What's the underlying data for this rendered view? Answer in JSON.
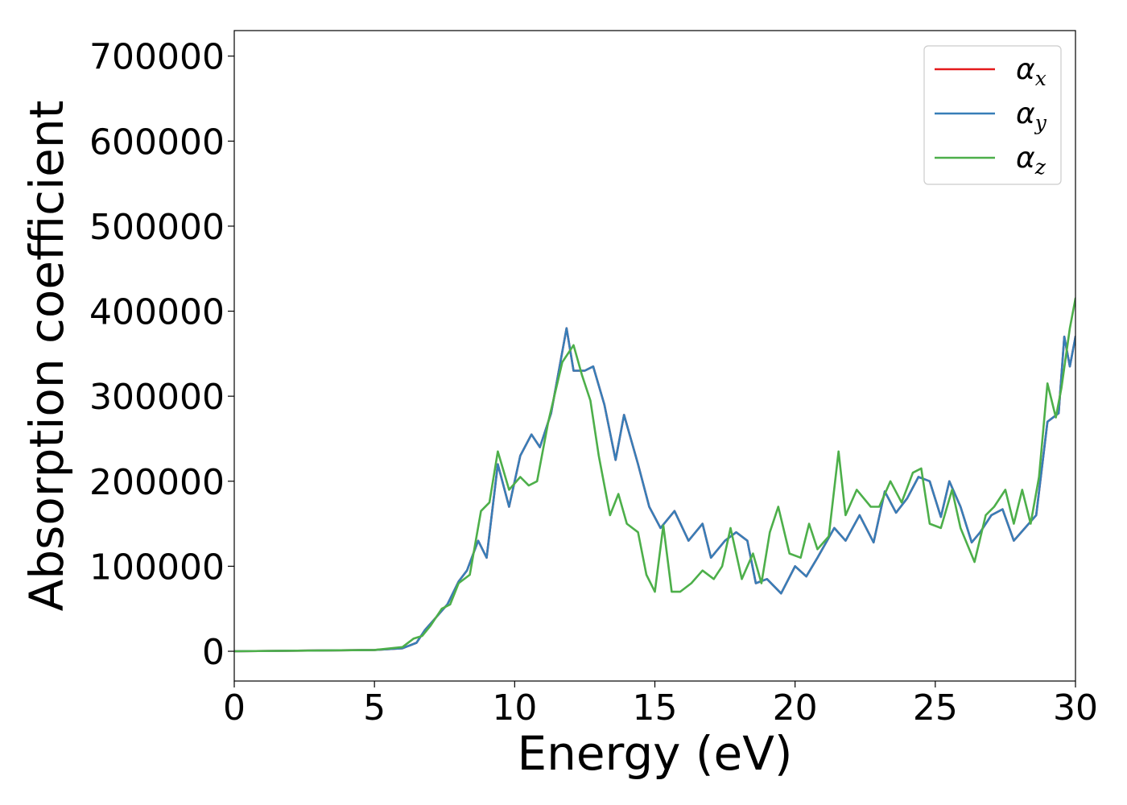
{
  "chart_data": {
    "type": "line",
    "xlabel": "Energy (eV)",
    "ylabel": "Absorption coefficient",
    "xlim": [
      0,
      30
    ],
    "ylim": [
      -35000,
      730000
    ],
    "xticks": [
      0,
      5,
      10,
      15,
      20,
      25,
      30
    ],
    "xtick_labels": [
      "0",
      "5",
      "10",
      "15",
      "20",
      "25",
      "30"
    ],
    "yticks": [
      0,
      100000,
      200000,
      300000,
      400000,
      500000,
      600000,
      700000
    ],
    "ytick_labels": [
      "0",
      "100000",
      "200000",
      "300000",
      "400000",
      "500000",
      "600000",
      "700000"
    ],
    "grid": false,
    "legend_position": "top-right",
    "series": [
      {
        "name": "α",
        "subscript": "x",
        "color": "#e41a1c",
        "x": [
          0,
          5,
          6.0,
          6.5,
          6.8,
          7.2,
          7.6,
          8.0,
          8.3,
          8.7,
          9.0,
          9.4,
          9.8,
          10.2,
          10.6,
          10.9,
          11.3,
          11.85,
          12.1,
          12.5,
          12.8,
          13.2,
          13.6,
          13.9,
          14.4,
          14.8,
          15.2,
          15.7,
          16.2,
          16.7,
          17.0,
          17.5,
          17.9,
          18.3,
          18.6,
          19.0,
          19.5,
          20.0,
          20.4,
          20.8,
          21.4,
          21.8,
          22.3,
          22.8,
          23.2,
          23.6,
          24.0,
          24.4,
          24.8,
          25.2,
          25.5,
          25.9,
          26.3,
          26.6,
          27.0,
          27.4,
          27.8,
          28.2,
          28.6,
          29.0,
          29.4,
          29.6,
          29.8,
          30.0
        ],
        "y": [
          0,
          1500,
          3500,
          10000,
          25000,
          40000,
          55000,
          82000,
          95000,
          130000,
          110000,
          220000,
          170000,
          230000,
          255000,
          240000,
          280000,
          380000,
          330000,
          330000,
          335000,
          290000,
          225000,
          278000,
          220000,
          170000,
          145000,
          165000,
          130000,
          150000,
          110000,
          130000,
          140000,
          130000,
          80000,
          85000,
          68000,
          100000,
          88000,
          110000,
          145000,
          130000,
          160000,
          128000,
          188000,
          163000,
          180000,
          205000,
          200000,
          158000,
          200000,
          170000,
          128000,
          140000,
          160000,
          167000,
          130000,
          145000,
          160000,
          270000,
          280000,
          370000,
          335000,
          370000
        ]
      },
      {
        "name": "α",
        "subscript": "y",
        "color": "#377eb8",
        "x": [
          0,
          5,
          6.0,
          6.5,
          6.8,
          7.2,
          7.6,
          8.0,
          8.3,
          8.7,
          9.0,
          9.4,
          9.8,
          10.2,
          10.6,
          10.9,
          11.3,
          11.85,
          12.1,
          12.5,
          12.8,
          13.2,
          13.6,
          13.9,
          14.4,
          14.8,
          15.2,
          15.7,
          16.2,
          16.7,
          17.0,
          17.5,
          17.9,
          18.3,
          18.6,
          19.0,
          19.5,
          20.0,
          20.4,
          20.8,
          21.4,
          21.8,
          22.3,
          22.8,
          23.2,
          23.6,
          24.0,
          24.4,
          24.8,
          25.2,
          25.5,
          25.9,
          26.3,
          26.6,
          27.0,
          27.4,
          27.8,
          28.2,
          28.6,
          29.0,
          29.4,
          29.6,
          29.8,
          30.0
        ],
        "y": [
          0,
          1500,
          3500,
          10000,
          25000,
          40000,
          55000,
          82000,
          95000,
          130000,
          110000,
          220000,
          170000,
          230000,
          255000,
          240000,
          280000,
          380000,
          330000,
          330000,
          335000,
          290000,
          225000,
          278000,
          220000,
          170000,
          145000,
          165000,
          130000,
          150000,
          110000,
          130000,
          140000,
          130000,
          80000,
          85000,
          68000,
          100000,
          88000,
          110000,
          145000,
          130000,
          160000,
          128000,
          188000,
          163000,
          180000,
          205000,
          200000,
          158000,
          200000,
          170000,
          128000,
          140000,
          160000,
          167000,
          130000,
          145000,
          160000,
          270000,
          280000,
          370000,
          335000,
          370000
        ]
      },
      {
        "name": "α",
        "subscript": "z",
        "color": "#4daf4a",
        "x": [
          0,
          5,
          6.0,
          6.4,
          6.7,
          7.0,
          7.4,
          7.7,
          8.0,
          8.4,
          8.8,
          9.1,
          9.4,
          9.8,
          10.2,
          10.5,
          10.8,
          11.2,
          11.7,
          12.1,
          12.4,
          12.7,
          13.0,
          13.4,
          13.7,
          14.0,
          14.4,
          14.7,
          15.0,
          15.3,
          15.6,
          15.9,
          16.3,
          16.7,
          17.1,
          17.4,
          17.7,
          18.1,
          18.5,
          18.8,
          19.1,
          19.4,
          19.8,
          20.2,
          20.5,
          20.8,
          21.2,
          21.55,
          21.8,
          22.2,
          22.7,
          23.0,
          23.4,
          23.8,
          24.2,
          24.5,
          24.8,
          25.2,
          25.6,
          25.9,
          26.4,
          26.8,
          27.1,
          27.5,
          27.8,
          28.1,
          28.4,
          28.7,
          29.0,
          29.3,
          29.5,
          29.8,
          30.0
        ],
        "y": [
          0,
          1500,
          5000,
          15000,
          18000,
          30000,
          50000,
          55000,
          80000,
          90000,
          165000,
          175000,
          235000,
          190000,
          205000,
          195000,
          200000,
          270000,
          340000,
          360000,
          325000,
          295000,
          230000,
          160000,
          185000,
          150000,
          140000,
          90000,
          70000,
          148000,
          70000,
          70000,
          80000,
          95000,
          85000,
          100000,
          145000,
          85000,
          115000,
          80000,
          140000,
          170000,
          115000,
          110000,
          150000,
          120000,
          135000,
          235000,
          160000,
          190000,
          170000,
          170000,
          200000,
          175000,
          210000,
          215000,
          150000,
          145000,
          190000,
          145000,
          105000,
          160000,
          170000,
          190000,
          150000,
          190000,
          150000,
          205000,
          315000,
          275000,
          310000,
          380000,
          415000
        ]
      }
    ]
  }
}
